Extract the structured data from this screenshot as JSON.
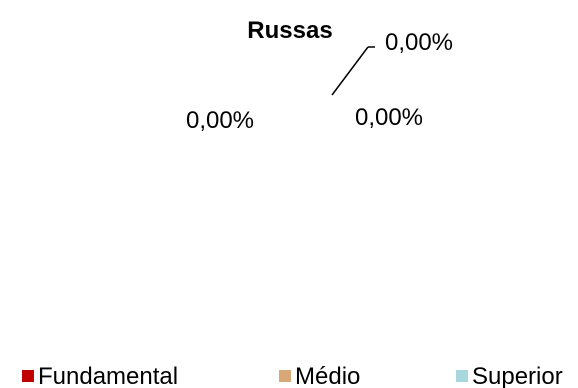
{
  "chart_data": {
    "type": "pie",
    "title": "Russas",
    "categories": [
      "Fundamental",
      "Médio",
      "Superior"
    ],
    "values": [
      0,
      0,
      0
    ],
    "data_labels": [
      "0,00%",
      "0,00%",
      "0,00%"
    ],
    "colors": [
      "#c00000",
      "#d9a878",
      "#a8d8dc"
    ],
    "legend": {
      "position": "bottom",
      "entries": [
        "Fundamental",
        "Médio",
        "Superior"
      ]
    }
  }
}
